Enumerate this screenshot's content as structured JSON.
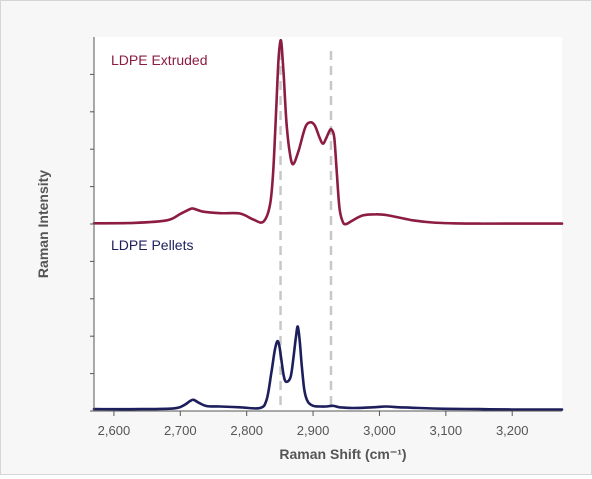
{
  "chart_data": {
    "type": "line",
    "title": "",
    "xlabel": "Raman Shift (cm⁻¹)",
    "ylabel": "Raman Intensity",
    "xlim": [
      2570,
      3275
    ],
    "ylim": [
      0,
      10
    ],
    "x_ticks": [
      2600,
      2700,
      2800,
      2900,
      3000,
      3100,
      3200
    ],
    "x_tick_labels": [
      "2,600",
      "2,700",
      "2,800",
      "2,900",
      "3,000",
      "3,100",
      "3,200"
    ],
    "y_ticks": [
      0,
      1,
      2,
      3,
      4,
      5,
      6,
      7,
      8,
      9
    ],
    "y_tick_labels_shown": false,
    "grid": false,
    "legend": "inline labels at top-left of each trace",
    "reference_lines": [
      {
        "x": 2851,
        "style": "dashed",
        "color": "#c8c8c8"
      },
      {
        "x": 2927,
        "style": "dashed",
        "color": "#c8c8c8"
      }
    ],
    "series": [
      {
        "name": "LDPE Extruded",
        "color": "#8c1c43",
        "x": [
          2570,
          2630,
          2680,
          2700,
          2715,
          2720,
          2735,
          2760,
          2790,
          2810,
          2825,
          2835,
          2840,
          2845,
          2848,
          2851,
          2853,
          2856,
          2860,
          2865,
          2870,
          2878,
          2885,
          2890,
          2897,
          2903,
          2910,
          2915,
          2920,
          2925,
          2928,
          2932,
          2936,
          2940,
          2945,
          2950,
          2960,
          2975,
          2995,
          3010,
          3030,
          3050,
          3080,
          3110,
          3150,
          3200,
          3275
        ],
        "y": [
          5.02,
          5.03,
          5.1,
          5.27,
          5.4,
          5.41,
          5.33,
          5.29,
          5.28,
          5.12,
          5.06,
          5.5,
          6.4,
          8.3,
          9.4,
          9.9,
          9.7,
          8.9,
          7.7,
          6.9,
          6.6,
          6.95,
          7.4,
          7.65,
          7.72,
          7.62,
          7.3,
          7.15,
          7.3,
          7.5,
          7.52,
          7.3,
          6.3,
          5.4,
          5.05,
          5.0,
          5.1,
          5.23,
          5.26,
          5.24,
          5.17,
          5.1,
          5.04,
          5.02,
          5.01,
          5.01,
          5.01
        ]
      },
      {
        "name": "LDPE Pellets",
        "color": "#1c1f5c",
        "x": [
          2570,
          2640,
          2690,
          2705,
          2715,
          2720,
          2728,
          2740,
          2760,
          2790,
          2820,
          2830,
          2837,
          2842,
          2846,
          2849,
          2852,
          2856,
          2860,
          2866,
          2870,
          2874,
          2877,
          2880,
          2883,
          2887,
          2892,
          2900,
          2910,
          2920,
          2930,
          2940,
          2960,
          2990,
          3010,
          3030,
          3060,
          3100,
          3150,
          3200,
          3275
        ],
        "y": [
          0.05,
          0.05,
          0.07,
          0.15,
          0.27,
          0.3,
          0.22,
          0.13,
          0.12,
          0.1,
          0.08,
          0.3,
          1.0,
          1.6,
          1.86,
          1.76,
          1.4,
          0.92,
          0.78,
          0.9,
          1.35,
          1.95,
          2.26,
          1.85,
          1.2,
          0.55,
          0.25,
          0.14,
          0.12,
          0.12,
          0.14,
          0.1,
          0.08,
          0.1,
          0.12,
          0.1,
          0.08,
          0.06,
          0.05,
          0.04,
          0.04
        ]
      }
    ]
  }
}
